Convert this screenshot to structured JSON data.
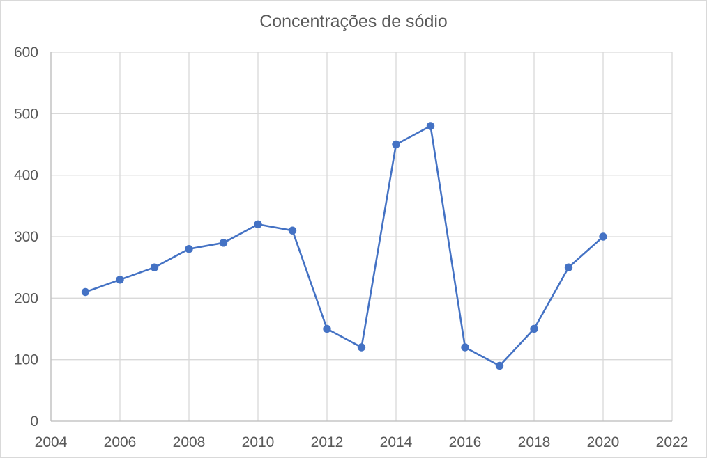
{
  "chart_data": {
    "type": "scatter",
    "title": "Concentrações de sódio",
    "xlabel": "",
    "ylabel": "",
    "xlim": [
      2004,
      2022
    ],
    "ylim": [
      0,
      600
    ],
    "xticks": [
      "2004",
      "2006",
      "2008",
      "2010",
      "2012",
      "2014",
      "2016",
      "2018",
      "2020",
      "2022"
    ],
    "yticks": [
      "0",
      "100",
      "200",
      "300",
      "400",
      "500",
      "600"
    ],
    "grid": true,
    "legend": "none",
    "series": [
      {
        "x": [
          2005,
          2006,
          2007,
          2008,
          2009,
          2010,
          2011,
          2012,
          2013,
          2014,
          2015,
          2016,
          2017,
          2018,
          2019,
          2020
        ],
        "y": [
          210,
          230,
          250,
          280,
          290,
          320,
          310,
          150,
          120,
          450,
          480,
          120,
          90,
          150,
          250,
          300
        ],
        "color": "#4472c4",
        "lines": true,
        "markers": true
      }
    ]
  }
}
